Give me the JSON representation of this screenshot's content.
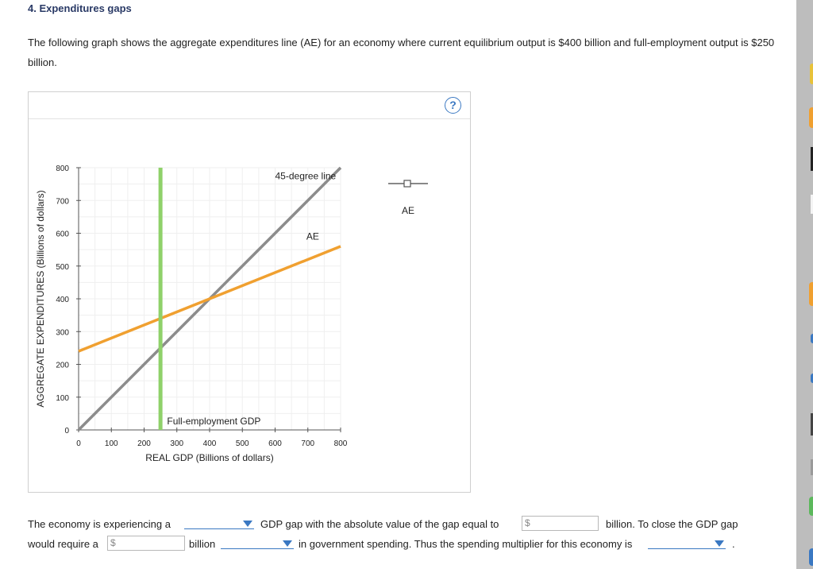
{
  "question": {
    "title": "4. Expenditures gaps",
    "intro": "The following graph shows the aggregate expenditures line (AE) for an economy where current equilibrium output is $400 billion and full-employment output is $250 billion.",
    "help_symbol": "?"
  },
  "chart_data": {
    "type": "line",
    "xlabel": "REAL GDP (Billions of dollars)",
    "ylabel": "AGGREGATE EXPENDITURES (Billions of dollars)",
    "xlim": [
      0,
      800
    ],
    "ylim": [
      0,
      800
    ],
    "x_ticks": [
      "0",
      "100",
      "200",
      "300",
      "400",
      "500",
      "600",
      "700",
      "800"
    ],
    "y_ticks": [
      "0",
      "100",
      "200",
      "300",
      "400",
      "500",
      "600",
      "700",
      "800"
    ],
    "grid": true,
    "series": [
      {
        "name": "45-degree line",
        "color": "#8c8c8c",
        "x": [
          0,
          800
        ],
        "y": [
          0,
          800
        ]
      },
      {
        "name": "AE",
        "color": "#f0a030",
        "x": [
          0,
          800
        ],
        "y": [
          240,
          560
        ]
      },
      {
        "name": "Full-employment GDP",
        "color": "#8fd16a",
        "x": [
          250,
          250
        ],
        "y": [
          0,
          800
        ]
      }
    ],
    "annotations": {
      "line45": "45-degree line",
      "ae": "AE",
      "fe": "Full-employment GDP"
    },
    "legend": {
      "label": "AE",
      "position": "right"
    }
  },
  "form": {
    "s1_prefix": "The economy is experiencing a",
    "s1_middle": "GDP gap with the absolute value of the gap equal to",
    "currency": "$",
    "s1_suffix": "billion. To close the GDP gap",
    "s2_prefix": "would require a",
    "s2_billion": "billion",
    "s2_middle": "in government spending. Thus the spending multiplier for this economy is",
    "s2_end": ".",
    "gap_type_value": "",
    "gap_amount_value": "",
    "spending_change_value": "",
    "spending_direction_value": "",
    "multiplier_value": ""
  }
}
